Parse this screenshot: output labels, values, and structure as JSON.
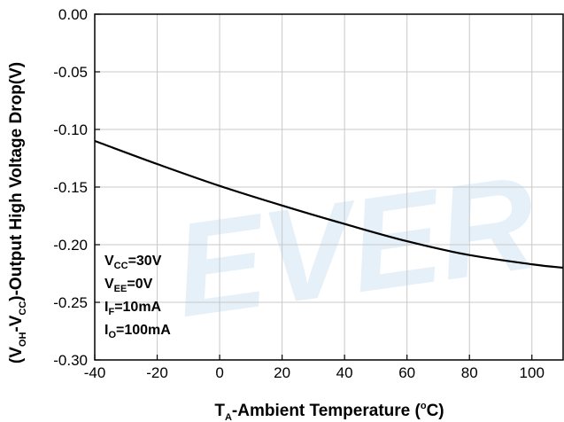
{
  "chart_data": {
    "type": "line",
    "xlabel": {
      "main": "T",
      "sub": "A",
      "rest": "-Ambient Temperature (",
      "sup": "o",
      "unit": "C)"
    },
    "ylabel": {
      "p1": "(V",
      "s1": "OH",
      "p2": "-V",
      "s2": "CC",
      "p3": ")-Output High Voltage Drop(V)"
    },
    "xlim": [
      -40,
      110
    ],
    "ylim": [
      -0.3,
      0.0
    ],
    "xticks": [
      -40,
      -20,
      0,
      20,
      40,
      60,
      80,
      100
    ],
    "xtick_labels": [
      "-40",
      "-20",
      "0",
      "20",
      "40",
      "60",
      "80",
      "100"
    ],
    "yticks": [
      0.0,
      -0.05,
      -0.1,
      -0.15,
      -0.2,
      -0.25,
      -0.3
    ],
    "ytick_labels": [
      "0.00",
      "-0.05",
      "-0.10",
      "-0.15",
      "-0.20",
      "-0.25",
      "-0.30"
    ],
    "grid": true,
    "series": [
      {
        "x": [
          -40,
          -20,
          0,
          20,
          40,
          60,
          80,
          100,
          110
        ],
        "y": [
          -0.11,
          -0.13,
          -0.149,
          -0.166,
          -0.182,
          -0.197,
          -0.209,
          -0.217,
          -0.22
        ],
        "color": "#000000"
      }
    ],
    "conditions": [
      {
        "main": "V",
        "sub": "CC",
        "rest": "=30V"
      },
      {
        "main": "V",
        "sub": "EE",
        "rest": "=0V"
      },
      {
        "main": "I",
        "sub": "F",
        "rest": "=10mA"
      },
      {
        "main": "I",
        "sub": "O",
        "rest": "=100mA"
      }
    ]
  },
  "watermark": "EVER"
}
